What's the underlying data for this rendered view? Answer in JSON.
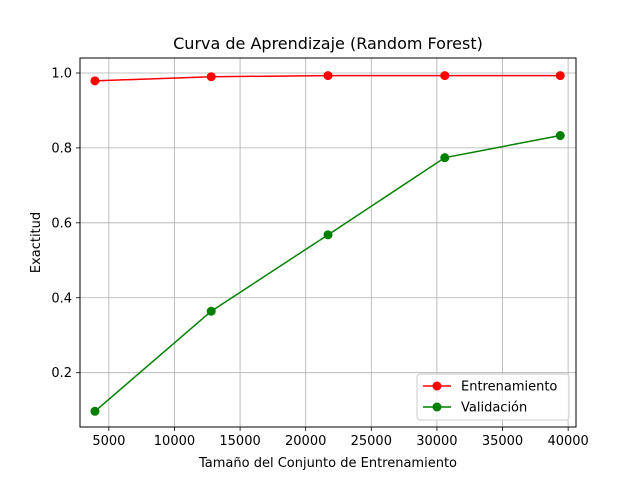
{
  "chart_data": {
    "type": "line",
    "title": "Curva de Aprendizaje (Random Forest)",
    "xlabel": "Tamaño del Conjunto de Entrenamiento",
    "ylabel": "Exactitud",
    "xlim": [
      2800,
      40600
    ],
    "ylim": [
      0.055,
      1.04
    ],
    "x_ticks": [
      5000,
      10000,
      15000,
      20000,
      25000,
      30000,
      35000,
      40000
    ],
    "y_ticks": [
      0.2,
      0.4,
      0.6,
      0.8,
      1.0
    ],
    "x_tick_labels": [
      "5000",
      "10000",
      "15000",
      "20000",
      "25000",
      "30000",
      "35000",
      "40000"
    ],
    "y_tick_labels": [
      "0.2",
      "0.4",
      "0.6",
      "0.8",
      "1.0"
    ],
    "grid": true,
    "legend_position": "lower-right",
    "x": [
      3940,
      12800,
      21700,
      30600,
      39400
    ],
    "series": [
      {
        "name": "Entrenamiento",
        "color": "#ff0000",
        "marker": "circle",
        "values": [
          0.979,
          0.99,
          0.993,
          0.993,
          0.993
        ]
      },
      {
        "name": "Validación",
        "color": "#008000",
        "marker": "circle",
        "values": [
          0.097,
          0.364,
          0.568,
          0.774,
          0.833
        ]
      }
    ]
  }
}
